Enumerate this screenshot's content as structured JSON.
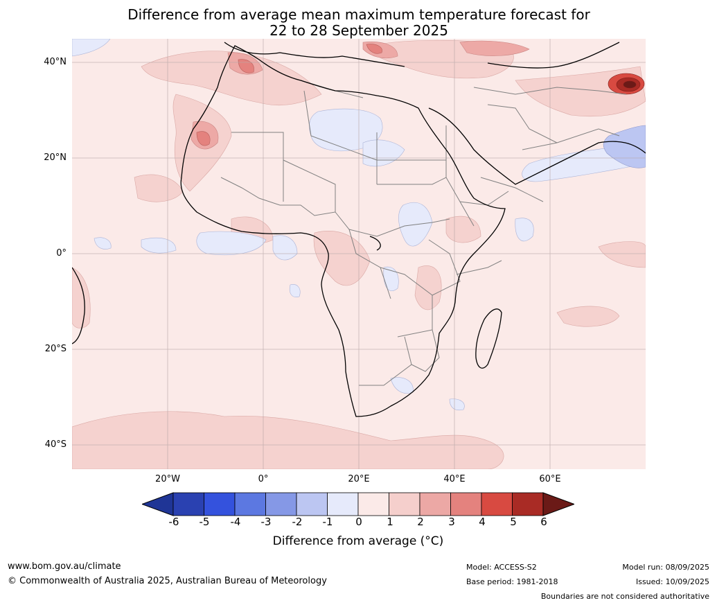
{
  "title": {
    "line1": "Difference from average mean maximum temperature forecast for",
    "line2": "22 to 28 September 2025"
  },
  "axes": {
    "lat_ticks": [
      "40°N",
      "20°N",
      "0°",
      "20°S",
      "40°S"
    ],
    "lon_ticks": [
      "20°W",
      "0°",
      "20°E",
      "40°E",
      "60°E"
    ]
  },
  "colorbar": {
    "title": "Difference from average (°C)",
    "ticks": [
      "-6",
      "-5",
      "-4",
      "-3",
      "-2",
      "-1",
      "0",
      "1",
      "2",
      "3",
      "4",
      "5",
      "6"
    ],
    "colors": [
      "#1f3596",
      "#2a41b1",
      "#3452dd",
      "#5c78e1",
      "#8598e6",
      "#bcc6f2",
      "#e6eafb",
      "#fbeae8",
      "#f5cfcc",
      "#eca8a5",
      "#e4827e",
      "#d84a41",
      "#a92b25",
      "#6b1a17"
    ]
  },
  "footer": {
    "website": "www.bom.gov.au/climate",
    "copyright": "© Commonwealth of Australia 2025, Australian Bureau of Meteorology",
    "model": "Model: ACCESS-S2",
    "base_period": "Base period: 1981-2018",
    "model_run": "Model run: 08/09/2025",
    "issued": "Issued: 10/09/2025",
    "disclaimer": "Boundaries are not considered authoritative"
  }
}
